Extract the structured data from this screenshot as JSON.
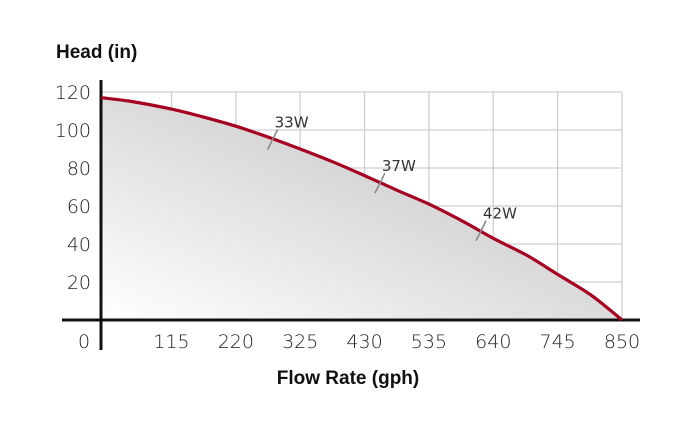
{
  "chart_data": {
    "type": "area",
    "xlabel": "Flow Rate (gph)",
    "ylabel": "Head (in)",
    "xlim": [
      0,
      850
    ],
    "ylim": [
      0,
      120
    ],
    "x_ticks": [
      0,
      115,
      220,
      325,
      430,
      535,
      640,
      745,
      850
    ],
    "x_tick_labels": [
      "0",
      "115",
      "220",
      "325",
      "430",
      "535",
      "640",
      "745",
      "850"
    ],
    "y_ticks": [
      20,
      40,
      60,
      80,
      100,
      120
    ],
    "y_tick_labels": [
      "20",
      "40",
      "60",
      "80",
      "100",
      "120"
    ],
    "grid": true,
    "curve_color": "#a50021",
    "fill_color": "#c8c8c8",
    "series": [
      {
        "x": [
          0,
          50,
          115,
          165,
          220,
          275,
          325,
          380,
          430,
          485,
          535,
          590,
          640,
          695,
          745,
          800,
          850
        ],
        "y": [
          117,
          115,
          111,
          107,
          102,
          96,
          90,
          83,
          76,
          68,
          61,
          52,
          43,
          34,
          24,
          13,
          0
        ]
      }
    ],
    "annotations": [
      {
        "text": "33W",
        "x": 280,
        "y": 95
      },
      {
        "text": "37W",
        "x": 455,
        "y": 72
      },
      {
        "text": "42W",
        "x": 620,
        "y": 47
      }
    ]
  }
}
